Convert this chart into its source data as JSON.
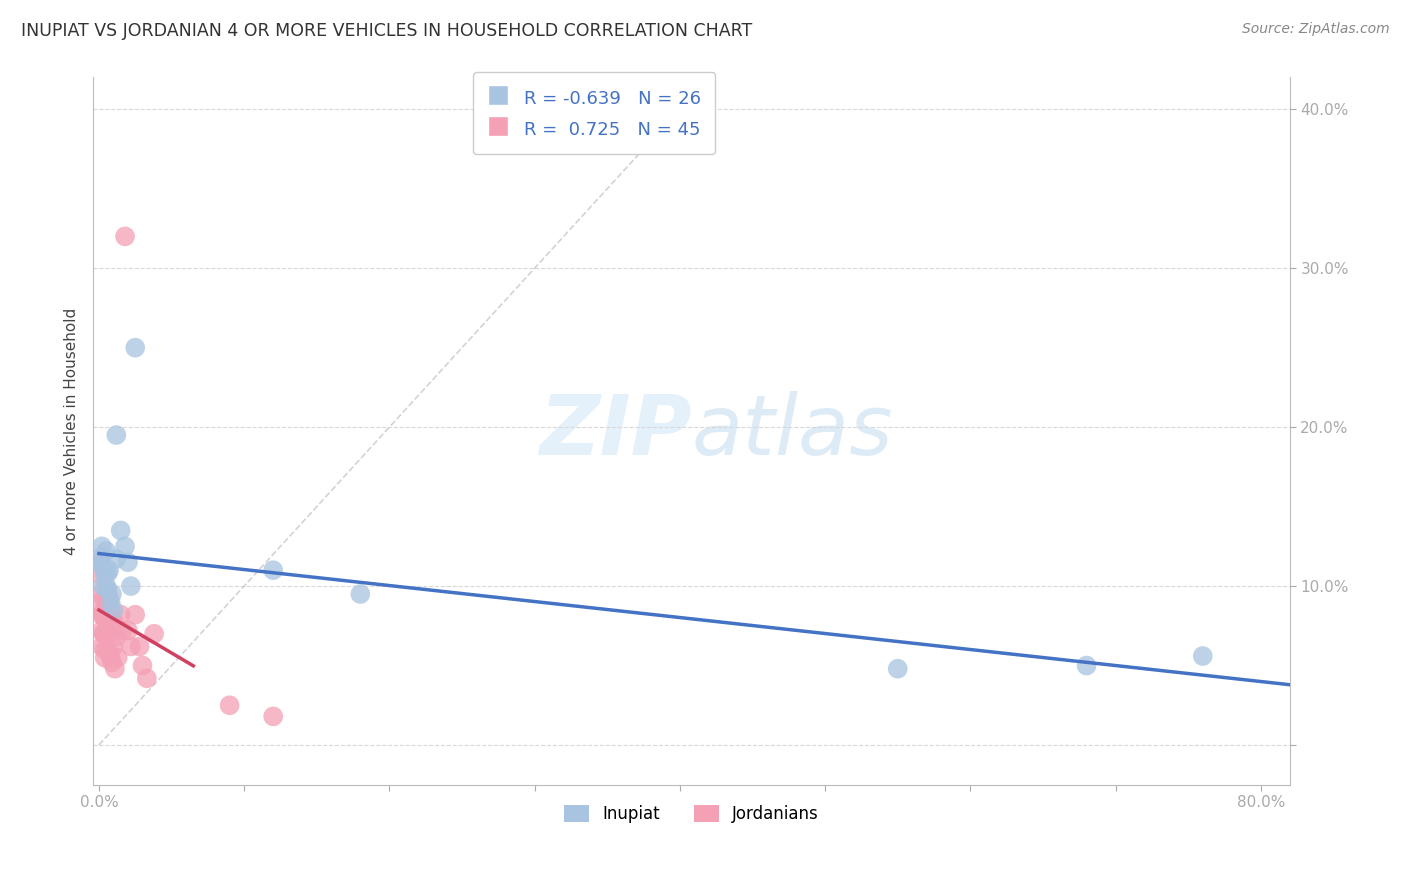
{
  "title": "INUPIAT VS JORDANIAN 4 OR MORE VEHICLES IN HOUSEHOLD CORRELATION CHART",
  "source": "Source: ZipAtlas.com",
  "ylabel": "4 or more Vehicles in Household",
  "watermark": "ZIPatlas",
  "inupiat_R": -0.639,
  "inupiat_N": 26,
  "jordanian_R": 0.725,
  "jordanian_N": 45,
  "inupiat_color": "#a8c4e0",
  "jordanian_color": "#f4a0b5",
  "inupiat_line_color": "#4472C4",
  "jordanian_line_color": "#D04060",
  "diagonal_color": "#c8c8c8",
  "xlim": [
    -0.004,
    0.82
  ],
  "ylim": [
    -0.025,
    0.42
  ],
  "xticks": [
    0.0,
    0.1,
    0.2,
    0.3,
    0.4,
    0.5,
    0.6,
    0.7,
    0.8
  ],
  "xticklabels": [
    "0.0%",
    "",
    "",
    "",
    "",
    "",
    "",
    "",
    "80.0%"
  ],
  "ytick_positions": [
    0.0,
    0.1,
    0.2,
    0.3,
    0.4
  ],
  "ytick_labels": [
    "",
    "10.0%",
    "20.0%",
    "30.0%",
    "40.0%"
  ],
  "inupiat_x": [
    0.001,
    0.0015,
    0.002,
    0.003,
    0.003,
    0.004,
    0.005,
    0.005,
    0.006,
    0.006,
    0.007,
    0.008,
    0.009,
    0.01,
    0.012,
    0.012,
    0.015,
    0.018,
    0.02,
    0.022,
    0.025,
    0.12,
    0.18,
    0.55,
    0.68,
    0.76
  ],
  "inupiat_y": [
    0.118,
    0.115,
    0.125,
    0.112,
    0.1,
    0.108,
    0.122,
    0.1,
    0.098,
    0.108,
    0.11,
    0.09,
    0.095,
    0.085,
    0.195,
    0.117,
    0.135,
    0.125,
    0.115,
    0.1,
    0.25,
    0.11,
    0.095,
    0.048,
    0.05,
    0.056
  ],
  "jordanian_x": [
    0.0005,
    0.001,
    0.001,
    0.0015,
    0.002,
    0.002,
    0.002,
    0.003,
    0.003,
    0.003,
    0.004,
    0.004,
    0.004,
    0.004,
    0.005,
    0.005,
    0.005,
    0.006,
    0.006,
    0.006,
    0.006,
    0.007,
    0.007,
    0.008,
    0.008,
    0.008,
    0.009,
    0.009,
    0.01,
    0.01,
    0.011,
    0.012,
    0.013,
    0.015,
    0.016,
    0.018,
    0.02,
    0.022,
    0.025,
    0.028,
    0.03,
    0.033,
    0.038,
    0.09,
    0.12
  ],
  "jordanian_y": [
    0.115,
    0.107,
    0.095,
    0.082,
    0.085,
    0.072,
    0.062,
    0.092,
    0.082,
    0.07,
    0.08,
    0.07,
    0.06,
    0.055,
    0.092,
    0.082,
    0.07,
    0.095,
    0.088,
    0.075,
    0.06,
    0.092,
    0.078,
    0.086,
    0.072,
    0.056,
    0.082,
    0.052,
    0.078,
    0.062,
    0.048,
    0.068,
    0.055,
    0.082,
    0.072,
    0.32,
    0.072,
    0.062,
    0.082,
    0.062,
    0.05,
    0.042,
    0.07,
    0.025,
    0.018
  ],
  "inupiat_trend_x": [
    0.0,
    0.82
  ],
  "jordanian_trend_x_start": 0.0,
  "jordanian_trend_x_end": 0.065
}
